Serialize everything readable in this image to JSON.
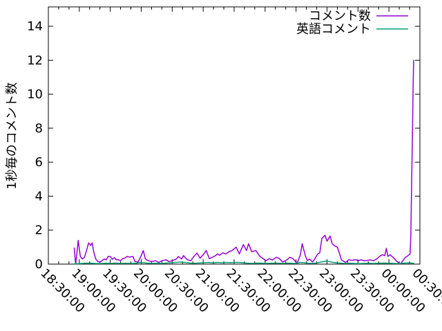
{
  "colors": {
    "background": "#ffffff",
    "axis": "#000000",
    "text": "#000000"
  },
  "chart_data": {
    "type": "line",
    "title": "",
    "xlabel": "",
    "ylabel": "1秒毎のコメント数",
    "ylim": [
      0,
      15.14
    ],
    "yticks": [
      0,
      2,
      4,
      6,
      8,
      10,
      12,
      14
    ],
    "x_minutes_range": [
      0,
      360
    ],
    "x_major_step_minutes": 30,
    "x_minor_step_minutes": 10,
    "grid": false,
    "legend_position": "top-right-inside",
    "xticks": [
      {
        "minute": 0,
        "label": "18:30:00"
      },
      {
        "minute": 30,
        "label": "19:00:00"
      },
      {
        "minute": 60,
        "label": "19:30:00"
      },
      {
        "minute": 90,
        "label": "20:00:00"
      },
      {
        "minute": 120,
        "label": "20:30:00"
      },
      {
        "minute": 150,
        "label": "21:00:00"
      },
      {
        "minute": 180,
        "label": "21:30:00"
      },
      {
        "minute": 210,
        "label": "22:00:00"
      },
      {
        "minute": 240,
        "label": "22:30:00"
      },
      {
        "minute": 270,
        "label": "23:00:00"
      },
      {
        "minute": 300,
        "label": "23:30:00"
      },
      {
        "minute": 330,
        "label": "00:00:00"
      },
      {
        "minute": 360,
        "label": "00:30:00"
      }
    ],
    "series": [
      {
        "name": "コメント数",
        "color": "#9400d3",
        "points": [
          [
            25,
            0.95
          ],
          [
            26.5,
            0
          ],
          [
            29,
            1.4
          ],
          [
            31,
            0.45
          ],
          [
            33,
            0.3
          ],
          [
            35,
            0.4
          ],
          [
            37,
            0.8
          ],
          [
            39,
            1.25
          ],
          [
            41,
            1.1
          ],
          [
            42.5,
            1.25
          ],
          [
            44,
            0.7
          ],
          [
            46,
            0.3
          ],
          [
            48,
            0.15
          ],
          [
            50,
            0.12
          ],
          [
            52,
            0.2
          ],
          [
            54,
            0.3
          ],
          [
            56,
            0.25
          ],
          [
            58,
            0.45
          ],
          [
            60,
            0.45
          ],
          [
            62,
            0.28
          ],
          [
            64,
            0.38
          ],
          [
            66,
            0.25
          ],
          [
            68,
            0.25
          ],
          [
            70,
            0.2
          ],
          [
            72,
            0.32
          ],
          [
            74,
            0.35
          ],
          [
            76,
            0.45
          ],
          [
            79,
            0.42
          ],
          [
            82,
            0.45
          ],
          [
            84,
            0.15
          ],
          [
            87,
            0.12
          ],
          [
            90,
            0.5
          ],
          [
            92,
            0.8
          ],
          [
            94,
            0.3
          ],
          [
            97,
            0.2
          ],
          [
            100,
            0.15
          ],
          [
            104,
            0.2
          ],
          [
            107,
            0.1
          ],
          [
            110,
            0.2
          ],
          [
            114,
            0.25
          ],
          [
            117,
            0.15
          ],
          [
            120,
            0.2
          ],
          [
            124,
            0.3
          ],
          [
            126,
            0.45
          ],
          [
            129,
            0.3
          ],
          [
            131,
            0.5
          ],
          [
            133,
            0.35
          ],
          [
            135,
            0.25
          ],
          [
            138,
            0.2
          ],
          [
            141,
            0.45
          ],
          [
            144,
            0.65
          ],
          [
            147,
            0.35
          ],
          [
            150,
            0.55
          ],
          [
            153,
            0.8
          ],
          [
            156,
            0.32
          ],
          [
            159,
            0.4
          ],
          [
            162,
            0.5
          ],
          [
            164,
            0.6
          ],
          [
            166,
            0.52
          ],
          [
            169,
            0.66
          ],
          [
            172,
            0.6
          ],
          [
            175,
            0.73
          ],
          [
            178,
            0.8
          ],
          [
            182,
            1.0
          ],
          [
            185,
            0.6
          ],
          [
            189,
            1.15
          ],
          [
            192,
            0.8
          ],
          [
            194,
            1.2
          ],
          [
            197,
            0.73
          ],
          [
            201,
            0.8
          ],
          [
            205,
            0.45
          ],
          [
            211,
            0.2
          ],
          [
            214,
            0.32
          ],
          [
            217,
            0.24
          ],
          [
            221,
            0.4
          ],
          [
            224,
            0.32
          ],
          [
            227,
            0.12
          ],
          [
            231,
            0.24
          ],
          [
            234,
            0.4
          ],
          [
            237,
            0.32
          ],
          [
            241,
            0.05
          ],
          [
            244,
            0.5
          ],
          [
            246,
            1.2
          ],
          [
            249,
            0.5
          ],
          [
            251,
            0.2
          ],
          [
            253,
            0.3
          ],
          [
            256,
            0.12
          ],
          [
            258,
            0.3
          ],
          [
            261,
            0.6
          ],
          [
            263,
            0.66
          ],
          [
            265,
            1.5
          ],
          [
            268,
            1.7
          ],
          [
            270,
            1.35
          ],
          [
            273,
            1.65
          ],
          [
            275,
            1.2
          ],
          [
            278,
            1.05
          ],
          [
            280,
            1.0
          ],
          [
            282,
            0.65
          ],
          [
            284,
            0.25
          ],
          [
            288,
            0.1
          ],
          [
            291,
            0.25
          ],
          [
            294,
            0.22
          ],
          [
            298,
            0.26
          ],
          [
            300,
            0.2
          ],
          [
            303,
            0.25
          ],
          [
            306,
            0.2
          ],
          [
            309,
            0.22
          ],
          [
            312,
            0.25
          ],
          [
            315,
            0.2
          ],
          [
            318,
            0.3
          ],
          [
            320,
            0.4
          ],
          [
            322,
            0.5
          ],
          [
            324,
            0.55
          ],
          [
            326,
            0.5
          ],
          [
            327.5,
            0.93
          ],
          [
            329,
            0.45
          ],
          [
            331,
            0.55
          ],
          [
            333,
            0.45
          ],
          [
            335,
            0.35
          ],
          [
            337,
            0.2
          ],
          [
            339,
            0.1
          ],
          [
            341,
            0
          ],
          [
            343.5,
            0.2
          ],
          [
            346,
            0.4
          ],
          [
            348.5,
            0.5
          ],
          [
            350.5,
            0.6
          ],
          [
            351.2,
            1.6
          ],
          [
            351.8,
            3.9
          ],
          [
            352.4,
            6.2
          ],
          [
            353,
            8.4
          ],
          [
            353.5,
            10.8
          ],
          [
            354,
            12
          ]
        ]
      },
      {
        "name": "英語コメント",
        "color": "#009e73",
        "points": [
          [
            25,
            0.02
          ],
          [
            30,
            0.03
          ],
          [
            35,
            0.05
          ],
          [
            40,
            0.06
          ],
          [
            45,
            0.04
          ],
          [
            50,
            0.03
          ],
          [
            55,
            0.05
          ],
          [
            60,
            0.04
          ],
          [
            65,
            0.06
          ],
          [
            70,
            0.04
          ],
          [
            75,
            0.05
          ],
          [
            80,
            0.04
          ],
          [
            85,
            0.05
          ],
          [
            90,
            0.1
          ],
          [
            95,
            0.06
          ],
          [
            100,
            0.04
          ],
          [
            105,
            0.05
          ],
          [
            110,
            0.04
          ],
          [
            115,
            0.06
          ],
          [
            120,
            0.08
          ],
          [
            124,
            0.1
          ],
          [
            128,
            0.12
          ],
          [
            132,
            0.1
          ],
          [
            136,
            0.07
          ],
          [
            140,
            0.05
          ],
          [
            145,
            0.06
          ],
          [
            150,
            0.08
          ],
          [
            155,
            0.1
          ],
          [
            160,
            0.07
          ],
          [
            164,
            0.1
          ],
          [
            168,
            0.08
          ],
          [
            172,
            0.1
          ],
          [
            176,
            0.08
          ],
          [
            180,
            0.1
          ],
          [
            184,
            0.1
          ],
          [
            188,
            0.08
          ],
          [
            192,
            0.06
          ],
          [
            196,
            0.04
          ],
          [
            200,
            0.05
          ],
          [
            205,
            0.06
          ],
          [
            210,
            0.04
          ],
          [
            215,
            0.05
          ],
          [
            220,
            0.06
          ],
          [
            224,
            0.05
          ],
          [
            227,
            0.04
          ],
          [
            231,
            0.06
          ],
          [
            234,
            0.05
          ],
          [
            238,
            0.04
          ],
          [
            241,
            0.05
          ],
          [
            244,
            0.1
          ],
          [
            248,
            0.08
          ],
          [
            252,
            0.05
          ],
          [
            256,
            0.04
          ],
          [
            260,
            0.07
          ],
          [
            264,
            0.12
          ],
          [
            268,
            0.17
          ],
          [
            272,
            0.15
          ],
          [
            276,
            0.1
          ],
          [
            280,
            0.07
          ],
          [
            284,
            0.05
          ],
          [
            288,
            0.04
          ],
          [
            292,
            0.05
          ],
          [
            296,
            0.04
          ],
          [
            300,
            0.03
          ],
          [
            305,
            0.04
          ],
          [
            310,
            0.05
          ],
          [
            315,
            0.04
          ],
          [
            320,
            0.05
          ],
          [
            325,
            0.06
          ],
          [
            330,
            0.05
          ],
          [
            335,
            0.04
          ],
          [
            340,
            0.03
          ],
          [
            345,
            0.06
          ],
          [
            350,
            0.07
          ],
          [
            354,
            0.05
          ]
        ]
      }
    ]
  }
}
